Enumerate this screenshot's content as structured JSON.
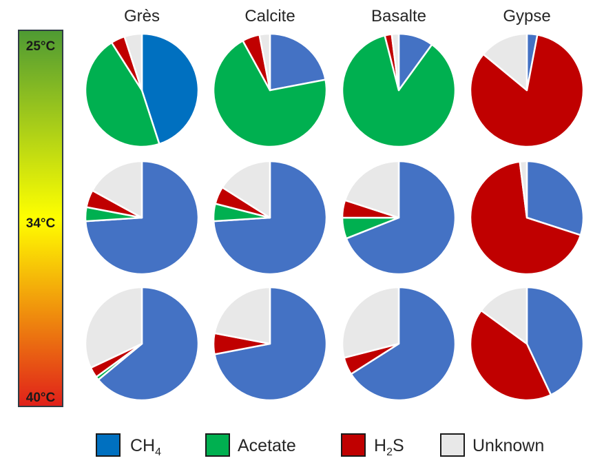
{
  "chart_data": {
    "type": "pie",
    "columns": [
      "Grès",
      "Calcite",
      "Basalte",
      "Gypse"
    ],
    "temperature_scale": {
      "labels": [
        "25°C",
        "34°C",
        "40°C"
      ],
      "colors": [
        "#4e9a33",
        "#ffff00",
        "#e0201a"
      ]
    },
    "legend": [
      {
        "key": "ch4",
        "label": "CH",
        "sub": "4",
        "color": "#0070c0"
      },
      {
        "key": "acetate",
        "label": "Acetate",
        "sub": "",
        "color": "#00b050"
      },
      {
        "key": "h2s",
        "label": "H",
        "sub": "2",
        "post": "S",
        "color": "#c00000"
      },
      {
        "key": "unknown",
        "label": "Unknown",
        "sub": "",
        "color": "#e8e8e8"
      }
    ],
    "series_order": [
      "CH4",
      "Acetate",
      "H2S",
      "Unknown"
    ],
    "rows": [
      {
        "temperature": "25°C",
        "pies": [
          {
            "column": "Grès",
            "ch4_color": "#0070c0",
            "values": {
              "CH4": 45,
              "Acetate": 46,
              "H2S": 4,
              "Unknown": 5
            }
          },
          {
            "column": "Calcite",
            "ch4_color": "#4472c4",
            "values": {
              "CH4": 22,
              "Acetate": 70,
              "H2S": 5,
              "Unknown": 3
            }
          },
          {
            "column": "Basalte",
            "ch4_color": "#4472c4",
            "values": {
              "CH4": 10,
              "Acetate": 86,
              "H2S": 2,
              "Unknown": 2
            }
          },
          {
            "column": "Gypse",
            "ch4_color": "#4472c4",
            "values": {
              "CH4": 3,
              "Acetate": 0,
              "H2S": 83,
              "Unknown": 14
            }
          }
        ]
      },
      {
        "temperature": "34°C",
        "pies": [
          {
            "column": "Grès",
            "ch4_color": "#4472c4",
            "values": {
              "CH4": 74,
              "Acetate": 4,
              "H2S": 5,
              "Unknown": 17
            }
          },
          {
            "column": "Calcite",
            "ch4_color": "#4472c4",
            "values": {
              "CH4": 74,
              "Acetate": 5,
              "H2S": 5,
              "Unknown": 16
            }
          },
          {
            "column": "Basalte",
            "ch4_color": "#4472c4",
            "values": {
              "CH4": 69,
              "Acetate": 6,
              "H2S": 5,
              "Unknown": 20
            }
          },
          {
            "column": "Gypse",
            "ch4_color": "#4472c4",
            "values": {
              "CH4": 30,
              "Acetate": 0,
              "H2S": 68,
              "Unknown": 2
            }
          }
        ]
      },
      {
        "temperature": "40°C",
        "pies": [
          {
            "column": "Grès",
            "ch4_color": "#4472c4",
            "values": {
              "CH4": 64,
              "Acetate": 1,
              "H2S": 3,
              "Unknown": 32
            }
          },
          {
            "column": "Calcite",
            "ch4_color": "#4472c4",
            "values": {
              "CH4": 72,
              "Acetate": 0,
              "H2S": 6,
              "Unknown": 22
            }
          },
          {
            "column": "Basalte",
            "ch4_color": "#4472c4",
            "values": {
              "CH4": 66,
              "Acetate": 0,
              "H2S": 5,
              "Unknown": 29
            }
          },
          {
            "column": "Gypse",
            "ch4_color": "#4472c4",
            "values": {
              "CH4": 43,
              "Acetate": 0,
              "H2S": 42,
              "Unknown": 15
            }
          }
        ]
      }
    ],
    "slice_colors": {
      "Acetate": "#00b050",
      "H2S": "#c00000",
      "Unknown": "#e8e8e8"
    }
  }
}
